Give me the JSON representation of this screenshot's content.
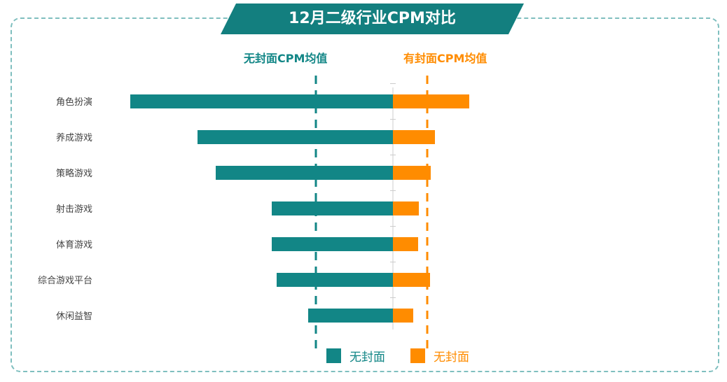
{
  "chart_data": {
    "type": "bar",
    "title": "12月二级行业CPM对比",
    "categories": [
      "角色扮演",
      "养成游戏",
      "策略游戏",
      "射击游戏",
      "体育游戏",
      "综合游戏平台",
      "休闲益智"
    ],
    "series": [
      {
        "name": "无封面",
        "color": "#128686",
        "direction": "left",
        "values": [
          375,
          279,
          253,
          173,
          173,
          166,
          121
        ]
      },
      {
        "name": "无封面",
        "color": "#ff8c00",
        "direction": "right",
        "values": [
          109,
          60,
          54,
          37,
          36,
          53,
          29
        ]
      }
    ],
    "averages": [
      {
        "label": "无封面CPM均值",
        "value": 110,
        "series": 0,
        "color": "#128686"
      },
      {
        "label": "有封面CPM均值",
        "value": 49,
        "series": 1,
        "color": "#ff8c00"
      }
    ],
    "legend_position": "bottom-center",
    "xlabel": "",
    "ylabel": "",
    "grid": false,
    "note": "values estimated as relative magnitudes; no axis scale shown"
  }
}
